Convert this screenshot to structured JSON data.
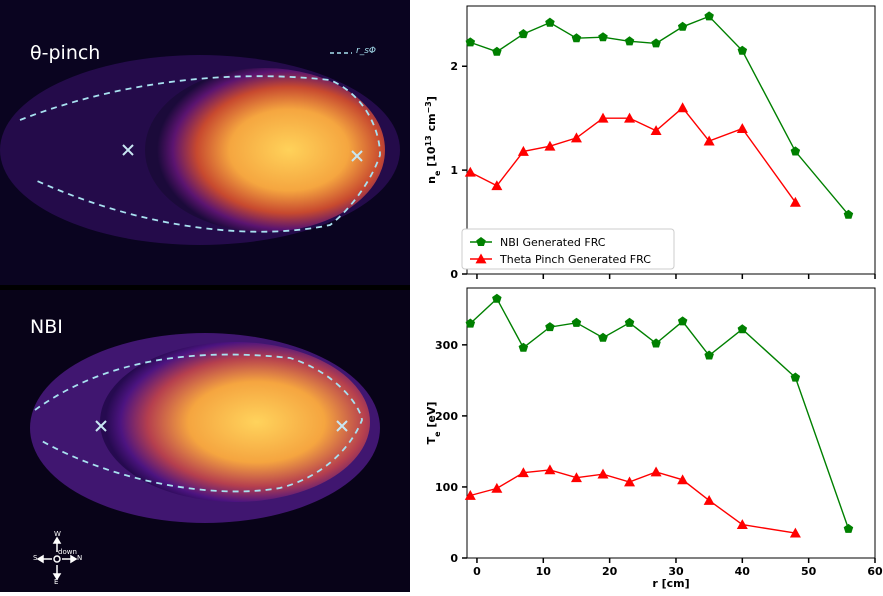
{
  "images": {
    "top_label": "θ-pinch",
    "bottom_label": "NBI",
    "legend_label": "r_sΦ",
    "compass": {
      "north": "W",
      "south": "E",
      "west": "S",
      "east": "N",
      "center": "down"
    }
  },
  "chart_data": [
    {
      "type": "line",
      "ylabel": "n_e [10^13 cm^-3]",
      "ylabel_parts": {
        "base": "n",
        "sub": "e",
        "pre": " [10",
        "sup": "13",
        "mid": " cm",
        "sup2": "−3",
        "post": "]"
      },
      "xlim": [
        -1.5,
        60
      ],
      "ylim": [
        0,
        2.58
      ],
      "yticks": [
        0,
        1,
        2
      ],
      "legend_position": "lower-left",
      "series": [
        {
          "name": "NBI Generated FRC",
          "color": "#008000",
          "marker": "pentagon",
          "x": [
            -1,
            3,
            7,
            11,
            15,
            19,
            23,
            27,
            31,
            35,
            40,
            48,
            56
          ],
          "y": [
            2.23,
            2.14,
            2.31,
            2.42,
            2.27,
            2.28,
            2.24,
            2.22,
            2.38,
            2.48,
            2.15,
            1.18,
            0.57
          ]
        },
        {
          "name": "Theta Pinch Generated FRC",
          "color": "#ff0000",
          "marker": "triangle",
          "x": [
            -1,
            3,
            7,
            11,
            15,
            19,
            23,
            27,
            31,
            35,
            40,
            48
          ],
          "y": [
            0.98,
            0.85,
            1.18,
            1.23,
            1.31,
            1.5,
            1.5,
            1.38,
            1.6,
            1.28,
            1.4,
            0.69
          ]
        }
      ]
    },
    {
      "type": "line",
      "ylabel": "T_e [eV]",
      "ylabel_parts": {
        "base": "T",
        "sub": "e",
        "post": " [eV]"
      },
      "xlabel": "r [cm]",
      "xlim": [
        -1.5,
        60
      ],
      "ylim": [
        0,
        380
      ],
      "yticks": [
        0,
        100,
        200,
        300
      ],
      "xticks": [
        0,
        10,
        20,
        30,
        40,
        50,
        60
      ],
      "series": [
        {
          "name": "NBI Generated FRC",
          "color": "#008000",
          "marker": "pentagon",
          "x": [
            -1,
            3,
            7,
            11,
            15,
            19,
            23,
            27,
            31,
            35,
            40,
            48,
            56
          ],
          "y": [
            330,
            365,
            296,
            325,
            331,
            310,
            331,
            302,
            333,
            285,
            322,
            254,
            41
          ]
        },
        {
          "name": "Theta Pinch Generated FRC",
          "color": "#ff0000",
          "marker": "triangle",
          "x": [
            -1,
            3,
            7,
            11,
            15,
            19,
            23,
            27,
            31,
            35,
            40,
            48
          ],
          "y": [
            88,
            98,
            120,
            124,
            113,
            118,
            107,
            121,
            110,
            81,
            47,
            35
          ]
        }
      ]
    }
  ]
}
